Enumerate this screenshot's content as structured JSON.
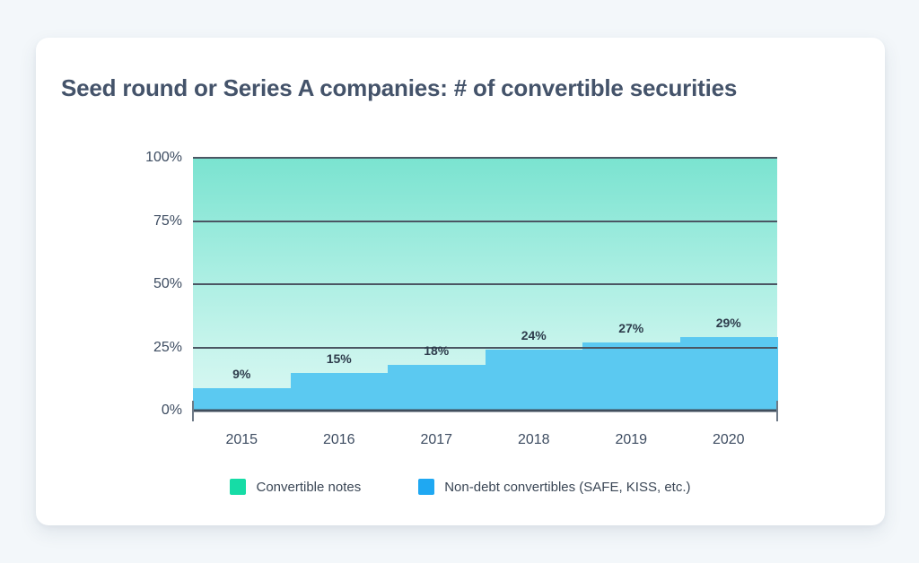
{
  "title": "Seed round or Series A companies: # of convertible securities",
  "colors": {
    "page_bg": "#f3f7fa",
    "card_bg": "#ffffff",
    "title_text": "#44536a",
    "axis_text": "#3d4c61",
    "data_label_text": "#2e3c4c",
    "gridline": "#4b5663",
    "axis_line": "#414e5c",
    "end_tick": "#6e7a87",
    "area_gradient_top": "#7ae3d0",
    "area_gradient_bottom": "#daf8f3",
    "blue_area_fill": "#5bc9f1",
    "legend_green": "#16dca6",
    "legend_blue": "#1fa8f2"
  },
  "chart_data": {
    "type": "area",
    "subtype": "step-stacked-percent",
    "title": "Seed round or Series A companies: # of convertible securities",
    "categories": [
      "2015",
      "2016",
      "2017",
      "2018",
      "2019",
      "2020"
    ],
    "series": [
      {
        "name": "Convertible notes",
        "values": [
          91,
          85,
          82,
          76,
          73,
          71
        ],
        "color": "#16dca6"
      },
      {
        "name": "Non-debt convertibles (SAFE, KISS, etc.)",
        "values": [
          9,
          15,
          18,
          24,
          27,
          29
        ],
        "labels": [
          "9%",
          "15%",
          "18%",
          "24%",
          "27%",
          "29%"
        ],
        "color": "#1fa8f2"
      }
    ],
    "xlabel": "",
    "ylabel": "",
    "ylim": [
      0,
      100
    ],
    "yticks": [
      {
        "label": "0%",
        "value": 0
      },
      {
        "label": "25%",
        "value": 25
      },
      {
        "label": "50%",
        "value": 50
      },
      {
        "label": "75%",
        "value": 75
      },
      {
        "label": "100%",
        "value": 100
      }
    ],
    "grid": "horizontal",
    "legend_position": "bottom"
  }
}
